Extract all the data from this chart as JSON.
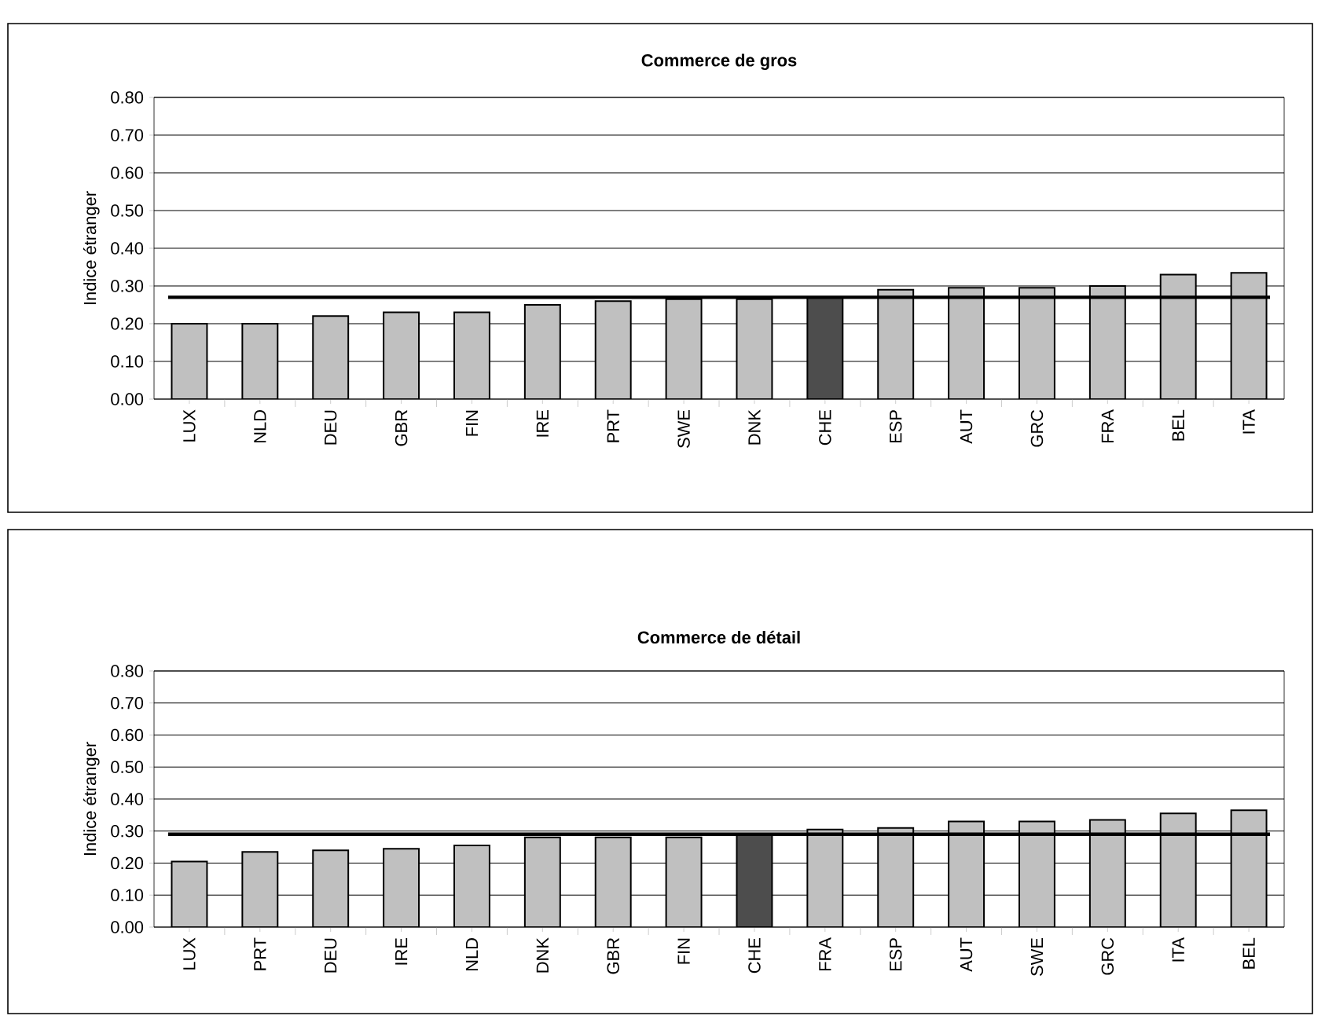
{
  "chart_data": [
    {
      "type": "bar",
      "title": "Commerce de gros",
      "ylabel": "Indice étranger",
      "categories": [
        "LUX",
        "NLD",
        "DEU",
        "GBR",
        "FIN",
        "IRE",
        "PRT",
        "SWE",
        "DNK",
        "CHE",
        "ESP",
        "AUT",
        "GRC",
        "FRA",
        "BEL",
        "ITA"
      ],
      "values": [
        0.2,
        0.2,
        0.22,
        0.23,
        0.23,
        0.25,
        0.26,
        0.265,
        0.265,
        0.27,
        0.29,
        0.295,
        0.295,
        0.3,
        0.33,
        0.335
      ],
      "colors": [
        "#c0c0c0",
        "#c0c0c0",
        "#c0c0c0",
        "#c0c0c0",
        "#c0c0c0",
        "#c0c0c0",
        "#c0c0c0",
        "#c0c0c0",
        "#c0c0c0",
        "#4d4d4d",
        "#c0c0c0",
        "#c0c0c0",
        "#c0c0c0",
        "#c0c0c0",
        "#c0c0c0",
        "#c0c0c0"
      ],
      "ylim": [
        0,
        0.8
      ],
      "yticks": [
        {
          "value": 0,
          "label": "0.00"
        },
        {
          "value": 0.1,
          "label": "0.10"
        },
        {
          "value": 0.2,
          "label": "0.20"
        },
        {
          "value": 0.3,
          "label": "0.30"
        },
        {
          "value": 0.4,
          "label": "0.40"
        },
        {
          "value": 0.5,
          "label": "0.50"
        },
        {
          "value": 0.6,
          "label": "0.60"
        },
        {
          "value": 0.7,
          "label": "0.70"
        },
        {
          "value": 0.8,
          "label": "0.80"
        }
      ],
      "grid": "y",
      "ref_lines": [
        {
          "axis": "y",
          "value": 0.27,
          "color": "#000000"
        }
      ]
    },
    {
      "type": "bar",
      "title": "Commerce de détail",
      "ylabel": "Indice étranger",
      "categories": [
        "LUX",
        "PRT",
        "DEU",
        "IRE",
        "NLD",
        "DNK",
        "GBR",
        "FIN",
        "CHE",
        "FRA",
        "ESP",
        "AUT",
        "SWE",
        "GRC",
        "ITA",
        "BEL"
      ],
      "values": [
        0.205,
        0.235,
        0.24,
        0.245,
        0.255,
        0.28,
        0.28,
        0.28,
        0.29,
        0.305,
        0.31,
        0.33,
        0.33,
        0.335,
        0.355,
        0.365
      ],
      "colors": [
        "#c0c0c0",
        "#c0c0c0",
        "#c0c0c0",
        "#c0c0c0",
        "#c0c0c0",
        "#c0c0c0",
        "#c0c0c0",
        "#c0c0c0",
        "#4d4d4d",
        "#c0c0c0",
        "#c0c0c0",
        "#c0c0c0",
        "#c0c0c0",
        "#c0c0c0",
        "#c0c0c0",
        "#c0c0c0"
      ],
      "ylim": [
        0,
        0.8
      ],
      "yticks": [
        {
          "value": 0,
          "label": "0.00"
        },
        {
          "value": 0.1,
          "label": "0.10"
        },
        {
          "value": 0.2,
          "label": "0.20"
        },
        {
          "value": 0.3,
          "label": "0.30"
        },
        {
          "value": 0.4,
          "label": "0.40"
        },
        {
          "value": 0.5,
          "label": "0.50"
        },
        {
          "value": 0.6,
          "label": "0.60"
        },
        {
          "value": 0.7,
          "label": "0.70"
        },
        {
          "value": 0.8,
          "label": "0.80"
        }
      ],
      "grid": "y",
      "ref_lines": [
        {
          "axis": "y",
          "value": 0.29,
          "color": "#000000"
        }
      ]
    }
  ]
}
